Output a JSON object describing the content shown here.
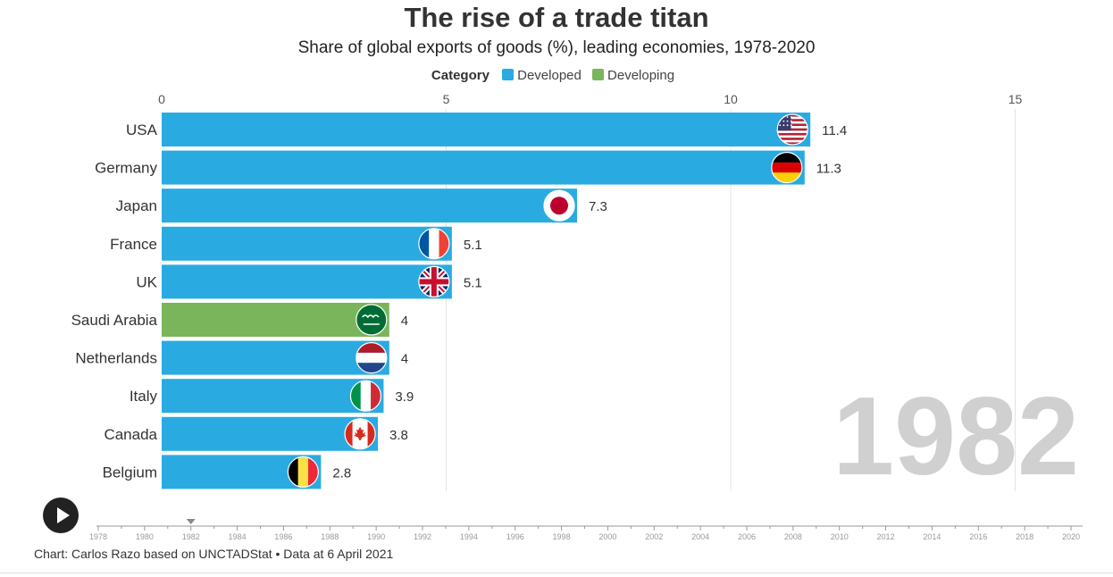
{
  "title": "The rise of a trade titan",
  "subtitle": "Share of global exports of goods (%), leading economies, 1978-2020",
  "legend": {
    "heading": "Category",
    "items": [
      {
        "label": "Developed",
        "color": "#29abe2"
      },
      {
        "label": "Developing",
        "color": "#7ab55c"
      }
    ]
  },
  "credit": "Chart: Carlos Razo based on UNCTADStat • Data at 6 April 2021",
  "current_year": "1982",
  "play_button": {
    "icon": "play-icon"
  },
  "chart_data": {
    "type": "bar",
    "orientation": "horizontal",
    "xlim": [
      0,
      15
    ],
    "x_ticks": [
      "0",
      "5",
      "10",
      "15"
    ],
    "categories": [
      "USA",
      "Germany",
      "Japan",
      "France",
      "UK",
      "Saudi Arabia",
      "Netherlands",
      "Italy",
      "Canada",
      "Belgium"
    ],
    "values": [
      11.4,
      11.3,
      7.3,
      5.1,
      5.1,
      4,
      4,
      3.9,
      3.8,
      2.8
    ],
    "value_labels": [
      "11.4",
      "11.3",
      "7.3",
      "5.1",
      "5.1",
      "4",
      "4",
      "3.9",
      "3.8",
      "2.8"
    ],
    "groups": [
      "Developed",
      "Developed",
      "Developed",
      "Developed",
      "Developed",
      "Developing",
      "Developed",
      "Developed",
      "Developed",
      "Developed"
    ],
    "flags": [
      "flag-usa",
      "flag-germany",
      "flag-japan",
      "flag-france",
      "flag-uk",
      "flag-saudi-arabia",
      "flag-netherlands",
      "flag-italy",
      "flag-canada",
      "flag-belgium"
    ],
    "grid": true,
    "timeline": {
      "labels": [
        "1978",
        "1980",
        "1982",
        "1984",
        "1986",
        "1988",
        "1990",
        "1992",
        "1994",
        "1996",
        "1998",
        "2000",
        "2002",
        "2004",
        "2006",
        "2008",
        "2010",
        "2012",
        "2014",
        "2016",
        "2018",
        "2020"
      ],
      "current": "1982"
    }
  }
}
